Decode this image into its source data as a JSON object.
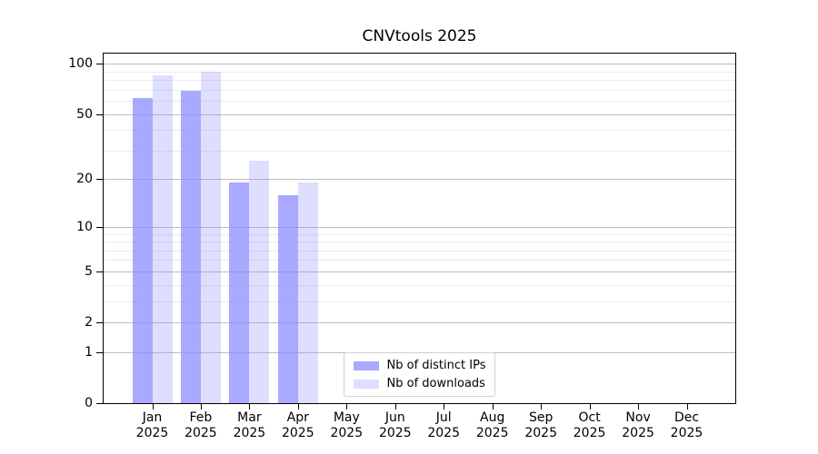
{
  "chart_data": {
    "type": "bar",
    "title": "CNVtools 2025",
    "year_label": "2025",
    "categories": [
      "Jan",
      "Feb",
      "Mar",
      "Apr",
      "May",
      "Jun",
      "Jul",
      "Aug",
      "Sep",
      "Oct",
      "Nov",
      "Dec"
    ],
    "series": [
      {
        "name": "Nb of distinct IPs",
        "color": "rgba(136,136,255,0.72)",
        "values": [
          62,
          69,
          19,
          16,
          null,
          null,
          null,
          null,
          null,
          null,
          null,
          null
        ]
      },
      {
        "name": "Nb of downloads",
        "color": "rgba(136,136,255,0.28)",
        "values": [
          85,
          90,
          26,
          19,
          null,
          null,
          null,
          null,
          null,
          null,
          null,
          null
        ]
      }
    ],
    "y_scale": "log1p",
    "ylim": [
      0,
      115
    ],
    "y_ticks": [
      100,
      50,
      20,
      10,
      5,
      2,
      1,
      0
    ],
    "y_minor_gridlines": [
      90,
      80,
      70,
      60,
      40,
      30,
      9,
      8,
      7,
      6,
      4,
      3
    ],
    "grid": true,
    "legend_position": "lower center",
    "colors": {
      "major_gridline": "#bdbdbd",
      "minor_gridline": "#ebebeb",
      "axis": "#000000",
      "background": "#ffffff"
    }
  }
}
